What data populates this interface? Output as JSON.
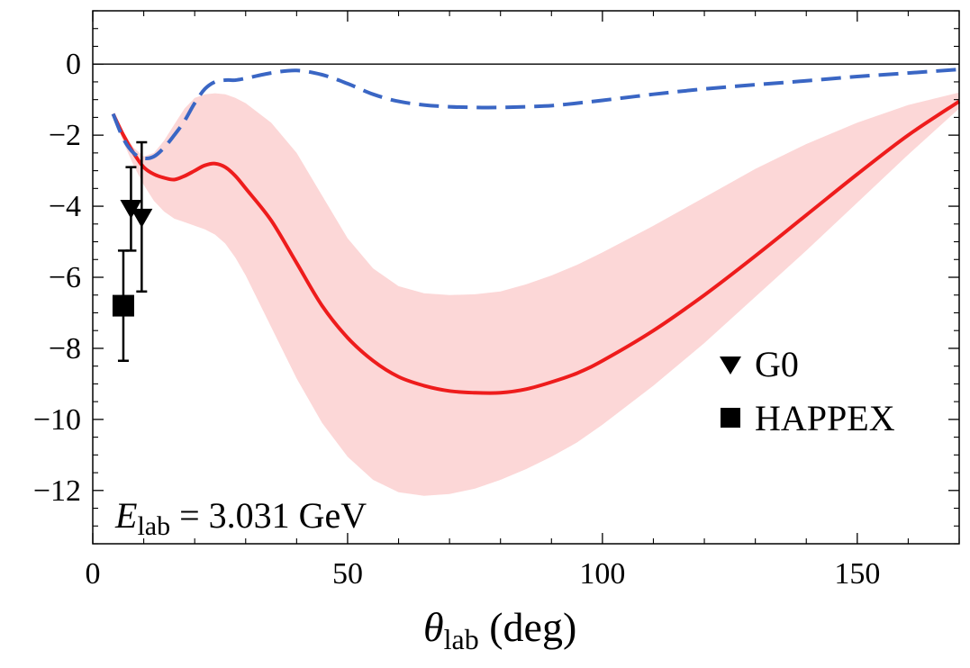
{
  "chart_data": {
    "type": "line",
    "xlabel": {
      "symbol": "θ",
      "subscript": "lab",
      "unit": " (deg)"
    },
    "ylabel": "",
    "xlim": [
      0,
      170
    ],
    "ylim": [
      -13.5,
      1.5
    ],
    "x_ticks": [
      0,
      50,
      100,
      150
    ],
    "y_ticks": [
      0,
      -2,
      -4,
      -6,
      -8,
      -10,
      -12
    ],
    "x_tick_labels": [
      "0",
      "50",
      "100",
      "150"
    ],
    "y_tick_labels": [
      "0",
      "−2",
      "−4",
      "−6",
      "−8",
      "−10",
      "−12"
    ],
    "zero_line": true,
    "grid": false,
    "annotation": {
      "symbol": "E",
      "subscript": "lab",
      "rest": " = 3.031 GeV"
    },
    "legend": {
      "position": "lower-right",
      "entries": [
        {
          "name": "G0",
          "marker": "triangle-down"
        },
        {
          "name": "HAPPEX",
          "marker": "square"
        }
      ]
    },
    "colors": {
      "band": "#fcd7d7",
      "solid": "#ee1c1c",
      "dashed": "#3a66c4",
      "points": "#000000"
    },
    "series": [
      {
        "style": "solid",
        "color": "#ee1c1c",
        "x": [
          4,
          6,
          8,
          10,
          12,
          14,
          16,
          18,
          20,
          22,
          24,
          26,
          28,
          30,
          35,
          40,
          45,
          50,
          55,
          60,
          65,
          70,
          75,
          80,
          85,
          90,
          95,
          100,
          110,
          120,
          130,
          140,
          150,
          160,
          170
        ],
        "y": [
          -1.4,
          -2.0,
          -2.5,
          -2.9,
          -3.1,
          -3.2,
          -3.25,
          -3.15,
          -3.0,
          -2.85,
          -2.8,
          -2.9,
          -3.15,
          -3.5,
          -4.4,
          -5.6,
          -6.8,
          -7.7,
          -8.35,
          -8.8,
          -9.05,
          -9.2,
          -9.25,
          -9.25,
          -9.15,
          -8.95,
          -8.7,
          -8.35,
          -7.5,
          -6.5,
          -5.4,
          -4.25,
          -3.1,
          -2.0,
          -1.05
        ]
      },
      {
        "style": "dashed",
        "color": "#3a66c4",
        "x": [
          4,
          6,
          8,
          10,
          12,
          14,
          16,
          18,
          20,
          22,
          24,
          26,
          28,
          30,
          35,
          40,
          45,
          50,
          55,
          60,
          65,
          70,
          75,
          80,
          85,
          90,
          95,
          100,
          110,
          120,
          130,
          140,
          150,
          160,
          170
        ],
        "y": [
          -1.4,
          -2.1,
          -2.5,
          -2.65,
          -2.6,
          -2.35,
          -2.0,
          -1.6,
          -1.1,
          -0.7,
          -0.5,
          -0.45,
          -0.45,
          -0.4,
          -0.25,
          -0.18,
          -0.3,
          -0.55,
          -0.85,
          -1.05,
          -1.15,
          -1.2,
          -1.22,
          -1.22,
          -1.2,
          -1.17,
          -1.1,
          -1.02,
          -0.85,
          -0.7,
          -0.58,
          -0.47,
          -0.35,
          -0.25,
          -0.15
        ]
      }
    ],
    "band": {
      "x": [
        4,
        6,
        8,
        10,
        12,
        14,
        16,
        18,
        20,
        22,
        24,
        26,
        28,
        30,
        35,
        40,
        45,
        50,
        55,
        60,
        65,
        70,
        75,
        80,
        85,
        90,
        95,
        100,
        110,
        120,
        130,
        140,
        150,
        160,
        170
      ],
      "upper": [
        -1.4,
        -1.9,
        -2.35,
        -2.6,
        -2.5,
        -2.15,
        -1.7,
        -1.25,
        -0.95,
        -0.85,
        -0.82,
        -0.85,
        -0.95,
        -1.1,
        -1.65,
        -2.5,
        -3.7,
        -4.9,
        -5.75,
        -6.25,
        -6.45,
        -6.5,
        -6.48,
        -6.4,
        -6.2,
        -5.95,
        -5.65,
        -5.3,
        -4.55,
        -3.75,
        -2.95,
        -2.25,
        -1.65,
        -1.15,
        -0.8
      ],
      "lower": [
        -1.4,
        -2.2,
        -2.85,
        -3.4,
        -3.85,
        -4.15,
        -4.35,
        -4.45,
        -4.55,
        -4.65,
        -4.8,
        -5.05,
        -5.45,
        -5.95,
        -7.4,
        -8.85,
        -10.1,
        -11.05,
        -11.7,
        -12.05,
        -12.15,
        -12.1,
        -11.95,
        -11.7,
        -11.4,
        -11.05,
        -10.65,
        -10.15,
        -9.05,
        -7.85,
        -6.55,
        -5.25,
        -3.9,
        -2.55,
        -1.25
      ]
    },
    "points": [
      {
        "label": "G0",
        "marker": "triangle-down",
        "x": 7.5,
        "y": -4.05,
        "err_low": 1.2,
        "err_high": 1.15
      },
      {
        "label": "G0",
        "marker": "triangle-down",
        "x": 9.6,
        "y": -4.3,
        "err_low": 2.1,
        "err_high": 2.1
      },
      {
        "label": "HAPPEX",
        "marker": "square",
        "x": 6.0,
        "y": -6.8,
        "err_low": 1.55,
        "err_high": 1.55
      }
    ]
  }
}
